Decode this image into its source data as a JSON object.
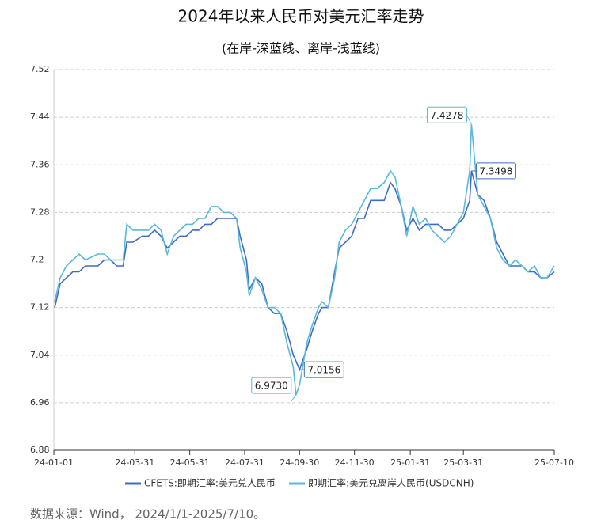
{
  "chart_data": {
    "type": "line",
    "title": "2024年以来人民币对美元汇率走势",
    "subtitle": "(在岸-深蓝线、离岸-浅蓝线)",
    "source": "数据来源：Wind， 2024/1/1-2025/7/10。",
    "x": [
      "24-01-02",
      "24-01-08",
      "24-01-15",
      "24-01-22",
      "24-01-29",
      "24-02-05",
      "24-02-19",
      "24-02-26",
      "24-03-04",
      "24-03-11",
      "24-03-18",
      "24-03-22",
      "24-03-29",
      "24-04-08",
      "24-04-15",
      "24-04-22",
      "24-04-29",
      "24-05-06",
      "24-05-13",
      "24-05-20",
      "24-05-27",
      "24-06-03",
      "24-06-10",
      "24-06-17",
      "24-06-24",
      "24-07-01",
      "24-07-08",
      "24-07-15",
      "24-07-22",
      "24-07-26",
      "24-08-02",
      "24-08-05",
      "24-08-12",
      "24-08-19",
      "24-08-26",
      "24-09-02",
      "24-09-09",
      "24-09-16",
      "24-09-23",
      "24-09-26",
      "24-09-30",
      "24-10-08",
      "24-10-14",
      "24-10-21",
      "24-10-25",
      "24-11-01",
      "24-11-08",
      "24-11-13",
      "24-11-20",
      "24-11-27",
      "24-12-04",
      "24-12-11",
      "24-12-18",
      "24-12-25",
      "25-01-02",
      "25-01-09",
      "25-01-14",
      "25-01-21",
      "25-01-27",
      "25-02-03",
      "25-02-10",
      "25-02-17",
      "25-02-24",
      "25-03-03",
      "25-03-10",
      "25-03-17",
      "25-03-24",
      "25-03-31",
      "25-04-07",
      "25-04-09",
      "25-04-16",
      "25-04-23",
      "25-04-30",
      "25-05-07",
      "25-05-14",
      "25-05-21",
      "25-05-28",
      "25-06-04",
      "25-06-11",
      "25-06-18",
      "25-06-25",
      "25-07-02",
      "25-07-10"
    ],
    "series": [
      {
        "name": "CFETS:即期汇率:美元兑人民币",
        "color": "#3d6cc4",
        "values": [
          7.12,
          7.16,
          7.17,
          7.18,
          7.18,
          7.19,
          7.19,
          7.2,
          7.2,
          7.19,
          7.19,
          7.23,
          7.23,
          7.24,
          7.24,
          7.25,
          7.24,
          7.22,
          7.23,
          7.24,
          7.24,
          7.25,
          7.25,
          7.26,
          7.26,
          7.27,
          7.27,
          7.27,
          7.27,
          7.24,
          7.2,
          7.15,
          7.17,
          7.16,
          7.12,
          7.11,
          7.11,
          7.08,
          7.04,
          7.03,
          7.0156,
          7.05,
          7.08,
          7.11,
          7.12,
          7.12,
          7.18,
          7.22,
          7.23,
          7.24,
          7.27,
          7.27,
          7.3,
          7.3,
          7.3,
          7.33,
          7.32,
          7.29,
          7.25,
          7.27,
          7.25,
          7.26,
          7.26,
          7.26,
          7.25,
          7.25,
          7.26,
          7.27,
          7.3,
          7.3498,
          7.31,
          7.3,
          7.27,
          7.23,
          7.21,
          7.19,
          7.19,
          7.19,
          7.18,
          7.18,
          7.17,
          7.17,
          7.18
        ]
      },
      {
        "name": "即期汇率:美元兑离岸人民币(USDCNH)",
        "color": "#5ab8d8",
        "values": [
          7.13,
          7.17,
          7.19,
          7.2,
          7.21,
          7.2,
          7.21,
          7.21,
          7.2,
          7.2,
          7.2,
          7.26,
          7.25,
          7.25,
          7.25,
          7.26,
          7.25,
          7.21,
          7.24,
          7.25,
          7.26,
          7.26,
          7.27,
          7.27,
          7.29,
          7.29,
          7.28,
          7.28,
          7.27,
          7.22,
          7.18,
          7.14,
          7.17,
          7.15,
          7.12,
          7.12,
          7.11,
          7.06,
          7.02,
          6.973,
          6.99,
          7.06,
          7.09,
          7.12,
          7.13,
          7.12,
          7.17,
          7.23,
          7.25,
          7.26,
          7.28,
          7.3,
          7.32,
          7.32,
          7.33,
          7.35,
          7.34,
          7.29,
          7.24,
          7.29,
          7.26,
          7.27,
          7.25,
          7.24,
          7.23,
          7.24,
          7.26,
          7.28,
          7.35,
          7.4278,
          7.31,
          7.29,
          7.27,
          7.22,
          7.2,
          7.19,
          7.2,
          7.19,
          7.18,
          7.19,
          7.17,
          7.17,
          7.19
        ]
      }
    ],
    "annotations": [
      {
        "value": 7.4278,
        "label": "7.4278"
      },
      {
        "value": 7.3498,
        "label": "7.3498"
      },
      {
        "value": 7.0156,
        "label": "7.0156"
      },
      {
        "value": 6.973,
        "label": "6.9730"
      }
    ],
    "xlim": [
      "24-01-01",
      "25-07-10"
    ],
    "xticks": [
      "24-01-01",
      "24-03-31",
      "24-05-31",
      "24-07-31",
      "24-09-30",
      "24-11-30",
      "25-01-31",
      "25-03-31",
      "25-07-10"
    ],
    "ylim": [
      6.88,
      7.52
    ],
    "yticks": [
      6.88,
      6.96,
      7.04,
      7.12,
      7.2,
      7.28,
      7.36,
      7.44,
      7.52
    ],
    "grid": true,
    "legend": "bottom"
  }
}
